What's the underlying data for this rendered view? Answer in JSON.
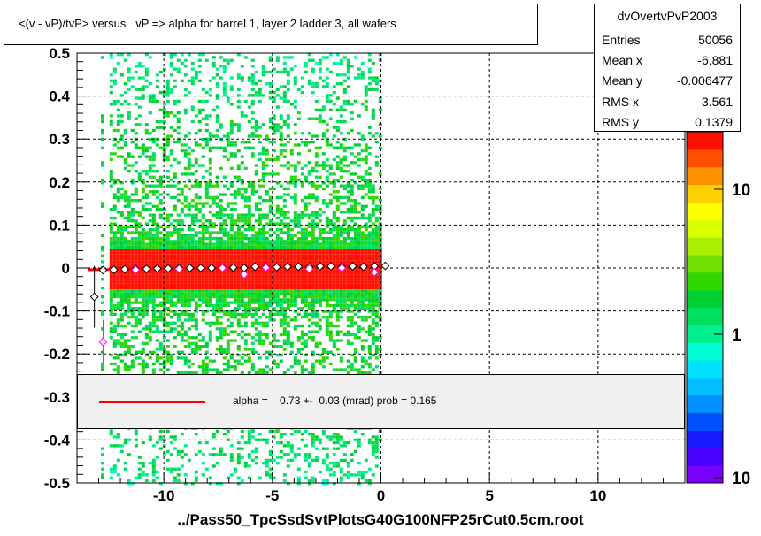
{
  "title": "<(v - vP)/tvP> versus   vP => alpha for barrel 1, layer 2 ladder 3, all wafers",
  "stats": {
    "name": "dvOvertvPvP2003",
    "rows": [
      {
        "label": "Entries",
        "value": "50056"
      },
      {
        "label": "Mean x",
        "value": "-6.881"
      },
      {
        "label": "Mean y",
        "value": "-0.006477"
      },
      {
        "label": "RMS x",
        "value": "3.561"
      },
      {
        "label": "RMS y",
        "value": "0.1379"
      }
    ]
  },
  "fit": {
    "text": "alpha =    0.73 +-  0.03 (mrad) prob = 0.165",
    "color": "#ff0000"
  },
  "footer": "../Pass50_TpcSsdSvtPlotsG40G100NFP25rCut0.5cm.root",
  "chart_data": {
    "type": "heatmap",
    "title": "<(v - vP)/tvP> versus   vP => alpha for barrel 1, layer 2 ladder 3, all wafers",
    "xlabel": "",
    "ylabel": "",
    "xlim": [
      -14,
      14
    ],
    "ylim": [
      -0.5,
      0.5
    ],
    "x_ticks": [
      "-10",
      "-5",
      "0",
      "5",
      "10"
    ],
    "y_ticks": [
      "0.5",
      "0.4",
      "0.3",
      "0.2",
      "0.1",
      "0",
      "-0.1",
      "-0.2",
      "-0.3",
      "-0.4",
      "-0.5"
    ],
    "grid": true,
    "populated_x_range": [
      -12.5,
      0
    ],
    "colorbar": {
      "scale": "log",
      "tick_labels": [
        "10",
        "1",
        "10"
      ]
    },
    "profile_points": [
      {
        "x": -13.2,
        "y": -0.067
      },
      {
        "x": -12.8,
        "y": -0.005
      },
      {
        "x": -12.3,
        "y": -0.004
      },
      {
        "x": -11.8,
        "y": -0.003
      },
      {
        "x": -11.3,
        "y": -0.002
      },
      {
        "x": -10.8,
        "y": -0.002
      },
      {
        "x": -10.3,
        "y": -0.001
      },
      {
        "x": -9.8,
        "y": -0.001
      },
      {
        "x": -9.3,
        "y": 0.0
      },
      {
        "x": -8.8,
        "y": 0.0
      },
      {
        "x": -8.3,
        "y": 0.0
      },
      {
        "x": -7.8,
        "y": 0.0
      },
      {
        "x": -7.3,
        "y": 0.001
      },
      {
        "x": -6.8,
        "y": 0.001
      },
      {
        "x": -6.3,
        "y": 0.0
      },
      {
        "x": -5.8,
        "y": 0.003
      },
      {
        "x": -5.3,
        "y": 0.002
      },
      {
        "x": -4.8,
        "y": 0.002
      },
      {
        "x": -4.3,
        "y": 0.003
      },
      {
        "x": -3.8,
        "y": 0.003
      },
      {
        "x": -3.3,
        "y": 0.002
      },
      {
        "x": -2.8,
        "y": 0.004
      },
      {
        "x": -2.3,
        "y": 0.004
      },
      {
        "x": -1.8,
        "y": 0.003
      },
      {
        "x": -1.3,
        "y": 0.004
      },
      {
        "x": -0.8,
        "y": 0.003
      },
      {
        "x": -0.3,
        "y": 0.004
      },
      {
        "x": 0.2,
        "y": 0.005
      }
    ],
    "profile_points_2": [
      {
        "x": -12.8,
        "y": -0.172
      },
      {
        "x": -11.3,
        "y": -0.004
      },
      {
        "x": -9.3,
        "y": -0.002
      },
      {
        "x": -7.3,
        "y": 0.0
      },
      {
        "x": -6.3,
        "y": -0.015
      },
      {
        "x": -5.3,
        "y": 0.001
      },
      {
        "x": -3.3,
        "y": -0.002
      },
      {
        "x": -1.8,
        "y": 0.0
      },
      {
        "x": -0.3,
        "y": -0.01
      }
    ],
    "fit_line": {
      "x": [
        -13.5,
        0.3
      ],
      "y": [
        -0.004,
        0.005
      ]
    }
  }
}
